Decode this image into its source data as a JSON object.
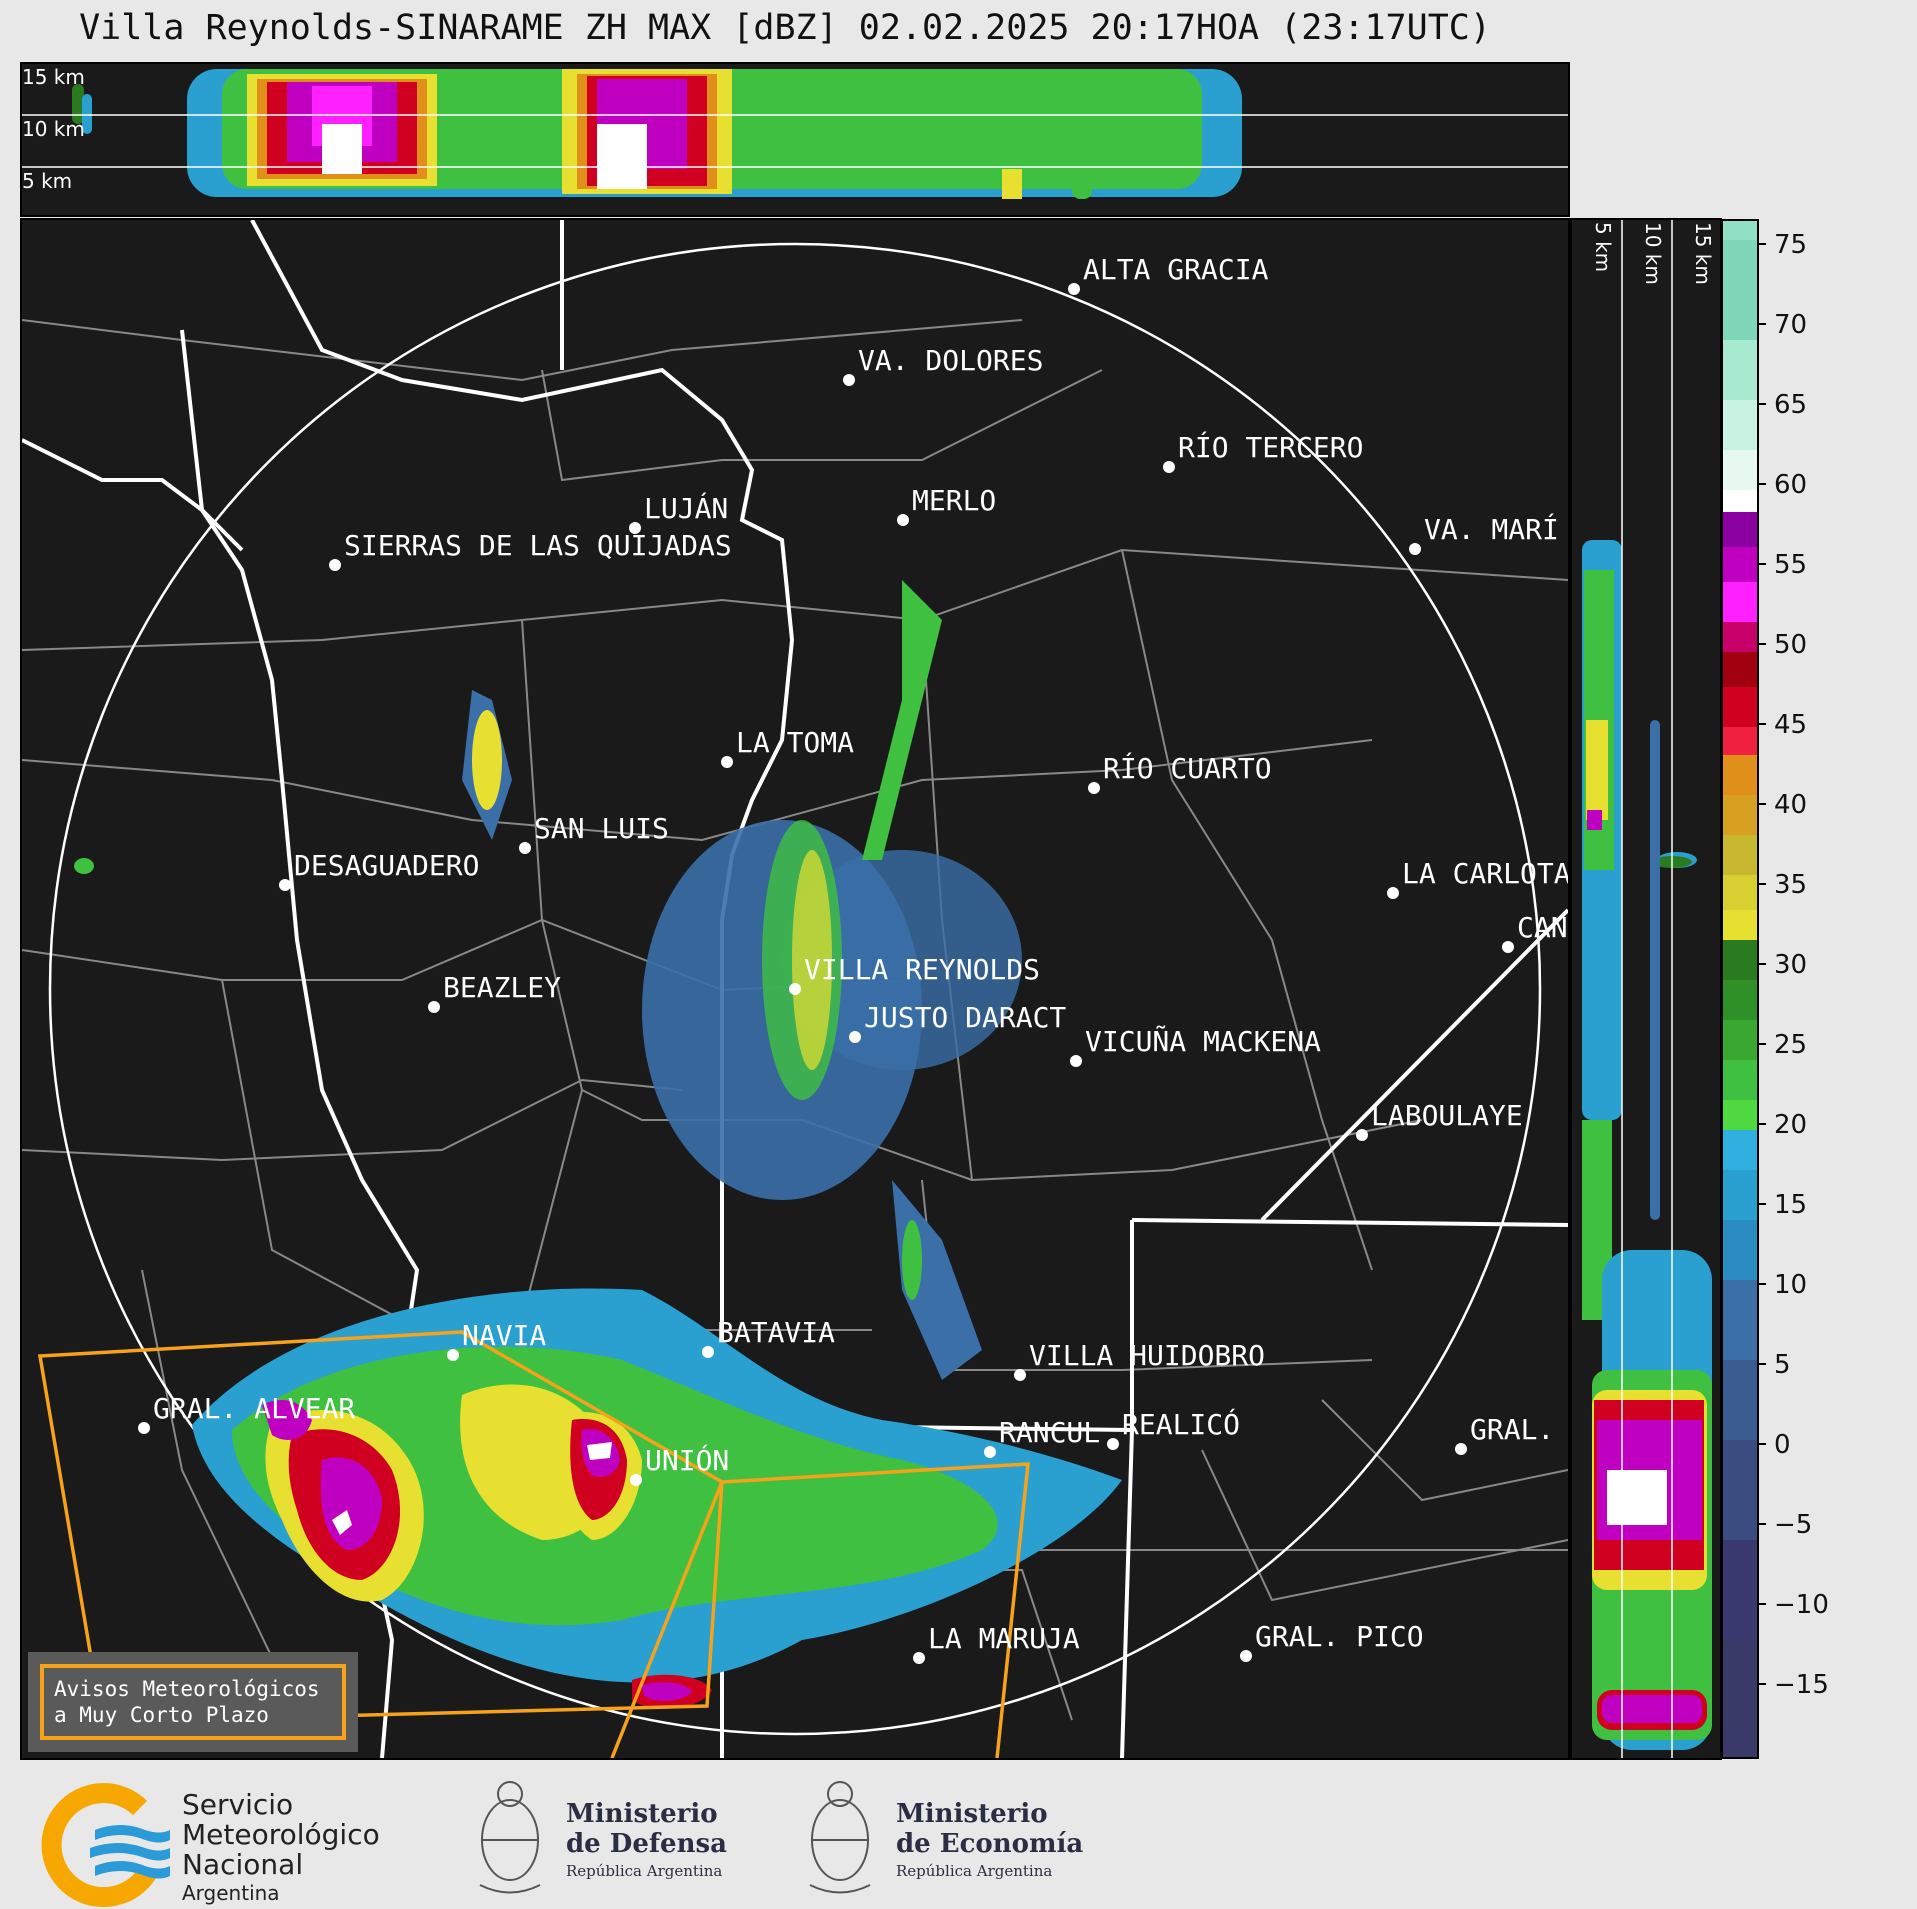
{
  "title": "Villa Reynolds-SINARAME ZH MAX [dBZ] 02.02.2025 20:17HOA (23:17UTC)",
  "top_strip": {
    "height_labels": [
      "15 km",
      "10 km",
      "5 km"
    ]
  },
  "side_strip": {
    "height_labels": [
      "5 km",
      "10 km",
      "15 km"
    ]
  },
  "colorbar": {
    "ticks": [
      "75",
      "70",
      "65",
      "60",
      "55",
      "50",
      "45",
      "40",
      "35",
      "30",
      "25",
      "20",
      "15",
      "10",
      "5",
      "0",
      "−5",
      "−10",
      "−15"
    ],
    "colors": {
      "teal_top": "#7fd6b8",
      "white": "#ffffff",
      "magenta": "#c000c0",
      "red": "#d00020",
      "orange": "#e0901a",
      "yellow": "#e8e030",
      "dark_green": "#2a7a20",
      "green": "#40c040",
      "cyan": "#20a0d0",
      "blue": "#3a6fa8",
      "navy": "#3a3a70"
    }
  },
  "cities": [
    {
      "name": "ALTA GRACIA"
    },
    {
      "name": "VA. DOLORES"
    },
    {
      "name": "RÍO TERCERO"
    },
    {
      "name": "MERLO"
    },
    {
      "name": "LUJÁN"
    },
    {
      "name": "SIERRAS DE LAS QUIJADAS"
    },
    {
      "name": "VA. MARÍ"
    },
    {
      "name": "LA TOMA"
    },
    {
      "name": "RÍO CUARTO"
    },
    {
      "name": "SAN LUIS"
    },
    {
      "name": "DESAGUADERO"
    },
    {
      "name": "LA CARLOTA"
    },
    {
      "name": "CAN"
    },
    {
      "name": "VILLA REYNOLDS"
    },
    {
      "name": "BEAZLEY"
    },
    {
      "name": "JUSTO DARACT"
    },
    {
      "name": "VICUÑA MACKENA"
    },
    {
      "name": "LABOULAYE"
    },
    {
      "name": "NAVIA"
    },
    {
      "name": "BATAVIA"
    },
    {
      "name": "VILLA HUIDOBRO"
    },
    {
      "name": "GRAL. ALVEAR"
    },
    {
      "name": "RANCUL"
    },
    {
      "name": "REALICÓ"
    },
    {
      "name": "GRAL."
    },
    {
      "name": "UNIÓN"
    },
    {
      "name": "LA MARUJA"
    },
    {
      "name": "GRAL. PICO"
    }
  ],
  "avisos": {
    "line1": "Avisos Meteorológicos",
    "line2": "a Muy Corto Plazo"
  },
  "footer": {
    "smn": {
      "line1": "Servicio",
      "line2": "Meteorológico",
      "line3": "Nacional",
      "line4": "Argentina"
    },
    "defensa": {
      "line1": "Ministerio",
      "line2": "de Defensa",
      "line3": "República Argentina"
    },
    "economia": {
      "line1": "Ministerio",
      "line2": "de Economía",
      "line3": "República Argentina"
    }
  }
}
